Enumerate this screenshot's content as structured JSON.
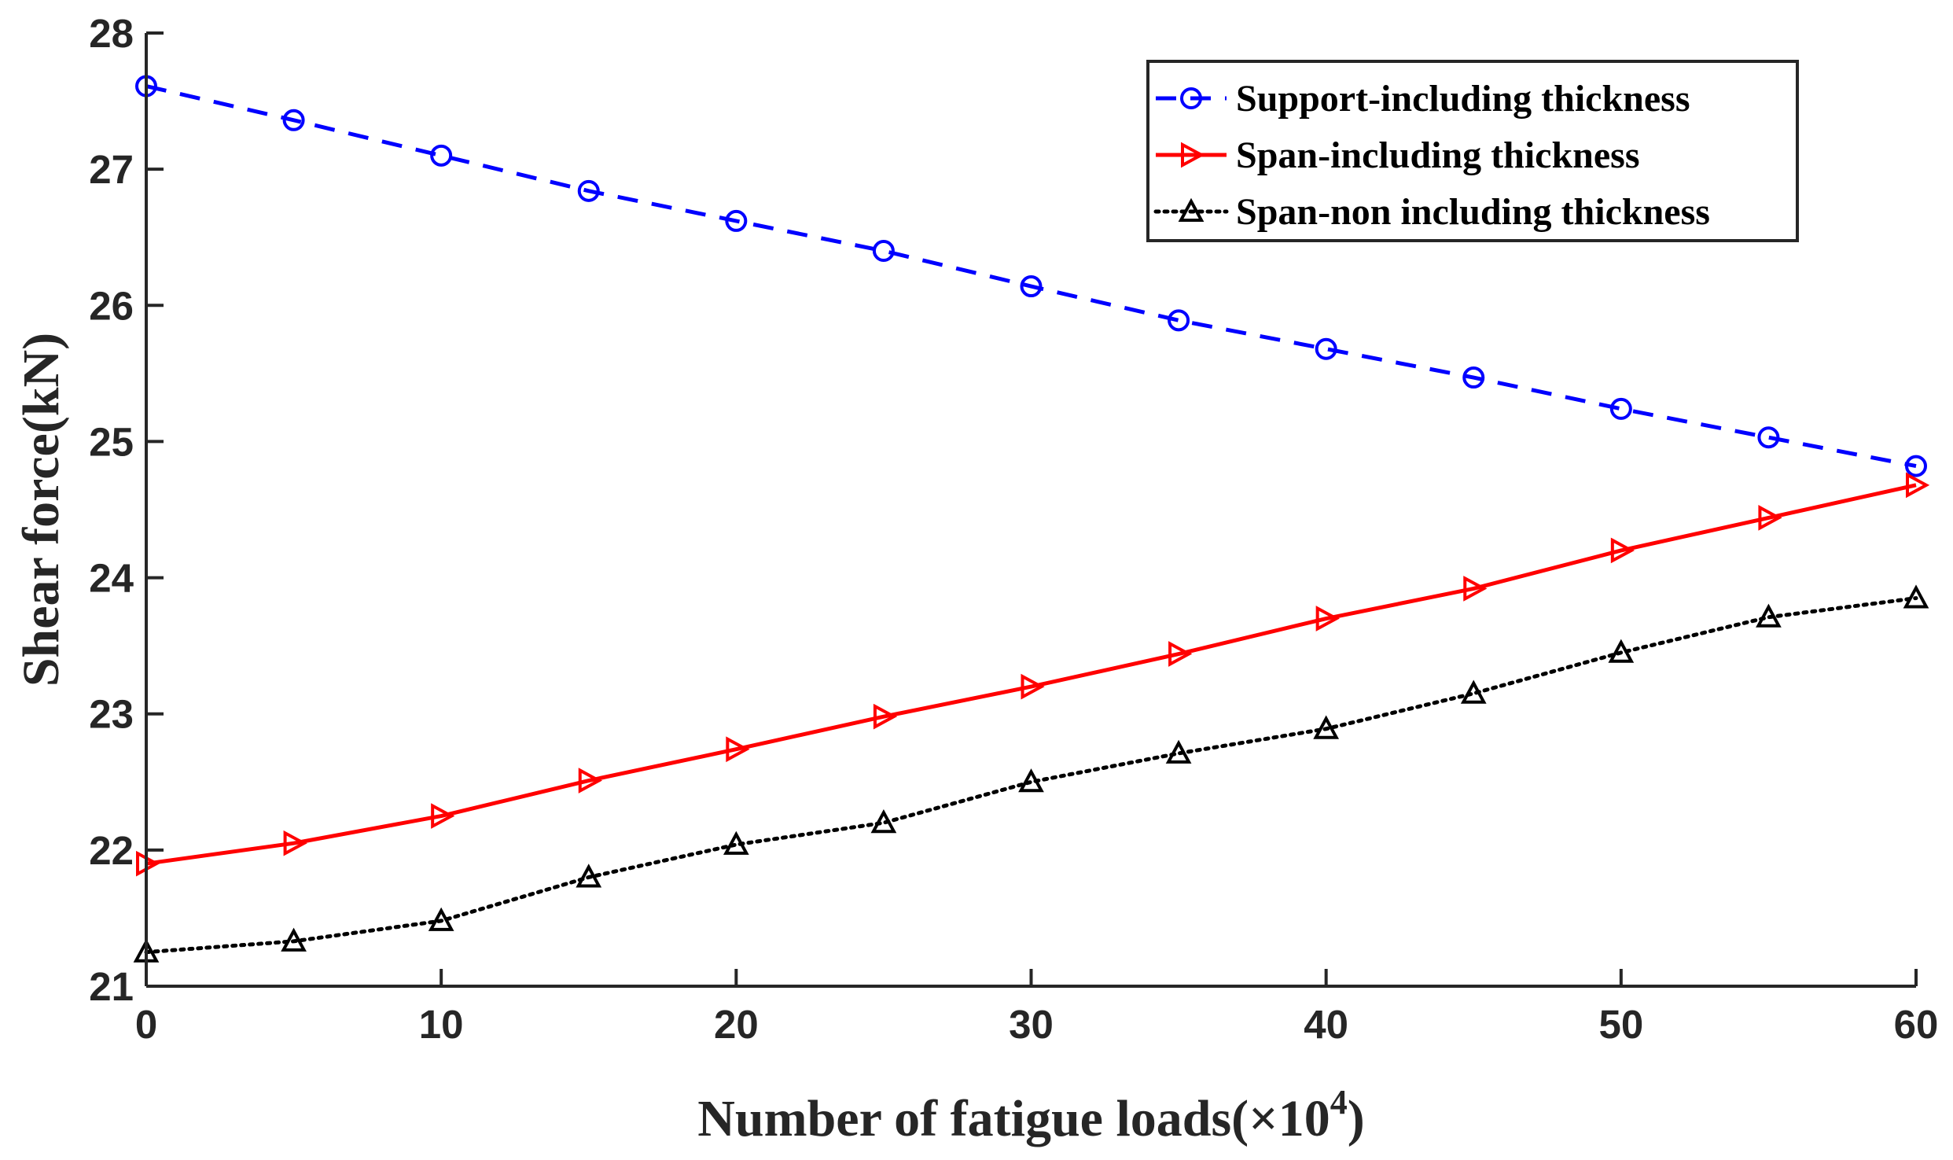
{
  "chart_data": {
    "type": "line",
    "xlabel": "Number of fatigue loads(×10",
    "xlabel_exponent": "4",
    "xlabel_suffix": ")",
    "ylabel": "Shear force(kN)",
    "xlim": [
      0,
      60
    ],
    "ylim": [
      21,
      28
    ],
    "xticks": [
      0,
      10,
      20,
      30,
      40,
      50,
      60
    ],
    "yticks": [
      21,
      22,
      23,
      24,
      25,
      26,
      27,
      28
    ],
    "x": [
      0,
      5,
      10,
      15,
      20,
      25,
      30,
      35,
      40,
      45,
      50,
      55,
      60
    ],
    "legend_position": "top-right",
    "series": [
      {
        "name": "Support-including thickness",
        "color": "#0000ff",
        "line_style": "dashed",
        "marker": "circle",
        "values": [
          27.61,
          27.36,
          27.1,
          26.84,
          26.62,
          26.4,
          26.14,
          25.89,
          25.68,
          25.47,
          25.24,
          25.03,
          24.82
        ]
      },
      {
        "name": "Span-including thickness",
        "color": "#ff0000",
        "line_style": "solid",
        "marker": "triangle-right",
        "values": [
          21.9,
          22.05,
          22.25,
          22.51,
          22.74,
          22.98,
          23.2,
          23.44,
          23.7,
          23.92,
          24.2,
          24.44,
          24.68
        ]
      },
      {
        "name": "Span-non including thickness",
        "color": "#000000",
        "line_style": "dotted",
        "marker": "triangle-up",
        "values": [
          21.25,
          21.33,
          21.48,
          21.8,
          22.04,
          22.2,
          22.5,
          22.71,
          22.89,
          23.15,
          23.45,
          23.71,
          23.85
        ]
      }
    ]
  }
}
